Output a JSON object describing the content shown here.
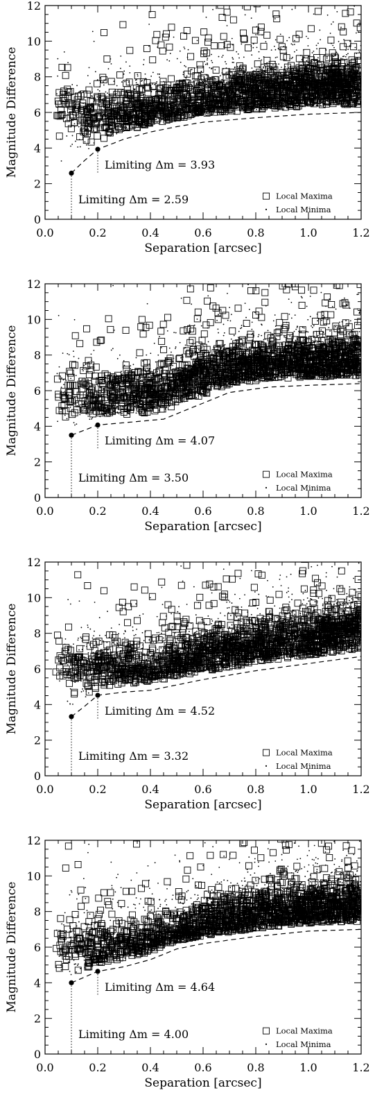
{
  "chart_data": [
    {
      "type": "scatter",
      "xlabel": "Separation  [arcsec]",
      "ylabel": "Magnitude Difference",
      "xlim": [
        0.0,
        1.2
      ],
      "ylim": [
        0,
        12
      ],
      "xticks": [
        "0.0",
        "0.2",
        "0.4",
        "0.6",
        "0.8",
        "1.0",
        "1.2"
      ],
      "yticks": [
        "0",
        "2",
        "4",
        "6",
        "8",
        "10",
        "12"
      ],
      "legend": {
        "placement": "bottom-right",
        "entries": [
          "Local Maxima",
          "Local Minima"
        ]
      },
      "series": [
        {
          "name": "Local Maxima",
          "marker": "square",
          "seed": 11,
          "count": 1700,
          "trend": [
            [
              0.05,
              6.2
            ],
            [
              0.15,
              5.8
            ],
            [
              0.3,
              6.0
            ],
            [
              0.5,
              6.5
            ],
            [
              0.7,
              7.0
            ],
            [
              0.9,
              7.3
            ],
            [
              1.1,
              7.5
            ],
            [
              1.2,
              7.5
            ]
          ],
          "spread": 0.65
        },
        {
          "name": "Local Minima",
          "marker": "dot",
          "seed": 23,
          "count": 1300,
          "trend": [
            [
              0.05,
              6.2
            ],
            [
              0.15,
              5.8
            ],
            [
              0.3,
              6.0
            ],
            [
              0.5,
              6.5
            ],
            [
              0.7,
              7.0
            ],
            [
              0.9,
              7.3
            ],
            [
              1.1,
              7.5
            ],
            [
              1.2,
              7.5
            ]
          ],
          "spread": 1.2
        }
      ],
      "limit_curve": [
        [
          0.1,
          2.59
        ],
        [
          0.15,
          3.3
        ],
        [
          0.2,
          3.93
        ],
        [
          0.3,
          4.5
        ],
        [
          0.4,
          4.9
        ],
        [
          0.5,
          5.2
        ],
        [
          0.6,
          5.45
        ],
        [
          0.8,
          5.7
        ],
        [
          1.0,
          5.9
        ],
        [
          1.2,
          6.0
        ]
      ],
      "limits": [
        {
          "x": 0.1,
          "y": 2.59,
          "label": "Limiting Δm = 2.59"
        },
        {
          "x": 0.2,
          "y": 3.93,
          "label": "Limiting Δm = 3.93"
        }
      ]
    },
    {
      "type": "scatter",
      "xlabel": "Separation  [arcsec]",
      "ylabel": "Magnitude Difference",
      "xlim": [
        0.0,
        1.2
      ],
      "ylim": [
        0,
        12
      ],
      "xticks": [
        "0.0",
        "0.2",
        "0.4",
        "0.6",
        "0.8",
        "1.0",
        "1.2"
      ],
      "yticks": [
        "0",
        "2",
        "4",
        "6",
        "8",
        "10",
        "12"
      ],
      "legend": {
        "placement": "bottom-right",
        "entries": [
          "Local Maxima",
          "Local Minima"
        ]
      },
      "series": [
        {
          "name": "Local Maxima",
          "marker": "square",
          "seed": 31,
          "count": 1700,
          "trend": [
            [
              0.05,
              5.8
            ],
            [
              0.2,
              5.7
            ],
            [
              0.4,
              5.9
            ],
            [
              0.6,
              7.0
            ],
            [
              0.8,
              7.6
            ],
            [
              1.0,
              7.7
            ],
            [
              1.2,
              7.8
            ]
          ],
          "spread": 0.7
        },
        {
          "name": "Local Minima",
          "marker": "dot",
          "seed": 37,
          "count": 1300,
          "trend": [
            [
              0.05,
              5.8
            ],
            [
              0.2,
              5.7
            ],
            [
              0.4,
              5.9
            ],
            [
              0.6,
              7.0
            ],
            [
              0.8,
              7.6
            ],
            [
              1.0,
              7.7
            ],
            [
              1.2,
              7.8
            ]
          ],
          "spread": 1.3
        }
      ],
      "limit_curve": [
        [
          0.1,
          3.5
        ],
        [
          0.2,
          4.07
        ],
        [
          0.3,
          4.2
        ],
        [
          0.45,
          4.4
        ],
        [
          0.55,
          5.0
        ],
        [
          0.7,
          5.9
        ],
        [
          0.85,
          6.2
        ],
        [
          1.0,
          6.3
        ],
        [
          1.2,
          6.4
        ]
      ],
      "limits": [
        {
          "x": 0.1,
          "y": 3.5,
          "label": "Limiting Δm = 3.50"
        },
        {
          "x": 0.2,
          "y": 4.07,
          "label": "Limiting Δm = 4.07"
        }
      ]
    },
    {
      "type": "scatter",
      "xlabel": "Separation  [arcsec]",
      "ylabel": "Magnitude Difference",
      "xlim": [
        0.0,
        1.2
      ],
      "ylim": [
        0,
        12
      ],
      "xticks": [
        "0.0",
        "0.2",
        "0.4",
        "0.6",
        "0.8",
        "1.0",
        "1.2"
      ],
      "yticks": [
        "0",
        "2",
        "4",
        "6",
        "8",
        "10",
        "12"
      ],
      "legend": {
        "placement": "bottom-right",
        "entries": [
          "Local Maxima",
          "Local Minima"
        ]
      },
      "series": [
        {
          "name": "Local Maxima",
          "marker": "square",
          "seed": 41,
          "count": 1700,
          "trend": [
            [
              0.05,
              6.3
            ],
            [
              0.2,
              6.2
            ],
            [
              0.4,
              6.1
            ],
            [
              0.6,
              6.8
            ],
            [
              0.8,
              7.3
            ],
            [
              1.0,
              7.8
            ],
            [
              1.2,
              8.3
            ]
          ],
          "spread": 0.7
        },
        {
          "name": "Local Minima",
          "marker": "dot",
          "seed": 43,
          "count": 1300,
          "trend": [
            [
              0.05,
              6.3
            ],
            [
              0.2,
              6.2
            ],
            [
              0.4,
              6.1
            ],
            [
              0.6,
              6.8
            ],
            [
              0.8,
              7.3
            ],
            [
              1.0,
              7.8
            ],
            [
              1.2,
              8.3
            ]
          ],
          "spread": 1.3
        }
      ],
      "limit_curve": [
        [
          0.1,
          3.32
        ],
        [
          0.15,
          3.9
        ],
        [
          0.2,
          4.52
        ],
        [
          0.3,
          4.7
        ],
        [
          0.4,
          4.8
        ],
        [
          0.6,
          5.4
        ],
        [
          0.8,
          5.9
        ],
        [
          1.0,
          6.3
        ],
        [
          1.2,
          6.7
        ]
      ],
      "limits": [
        {
          "x": 0.1,
          "y": 3.32,
          "label": "Limiting Δm = 3.32"
        },
        {
          "x": 0.2,
          "y": 4.52,
          "label": "Limiting Δm = 4.52"
        }
      ]
    },
    {
      "type": "scatter",
      "xlabel": "Separation  [arcsec]",
      "ylabel": "Magnitude Difference",
      "xlim": [
        0.0,
        1.2
      ],
      "ylim": [
        0,
        12
      ],
      "xticks": [
        "0.0",
        "0.2",
        "0.4",
        "0.6",
        "0.8",
        "1.0",
        "1.2"
      ],
      "yticks": [
        "0",
        "2",
        "4",
        "6",
        "8",
        "10",
        "12"
      ],
      "legend": {
        "placement": "bottom-right",
        "entries": [
          "Local Maxima",
          "Local Minima"
        ]
      },
      "series": [
        {
          "name": "Local Maxima",
          "marker": "square",
          "seed": 53,
          "count": 1700,
          "trend": [
            [
              0.05,
              6.2
            ],
            [
              0.2,
              6.0
            ],
            [
              0.4,
              6.4
            ],
            [
              0.6,
              7.3
            ],
            [
              0.8,
              7.9
            ],
            [
              1.0,
              8.2
            ],
            [
              1.2,
              8.4
            ]
          ],
          "spread": 0.7
        },
        {
          "name": "Local Minima",
          "marker": "dot",
          "seed": 59,
          "count": 1300,
          "trend": [
            [
              0.05,
              6.2
            ],
            [
              0.2,
              6.0
            ],
            [
              0.4,
              6.4
            ],
            [
              0.6,
              7.3
            ],
            [
              0.8,
              7.9
            ],
            [
              1.0,
              8.2
            ],
            [
              1.2,
              8.4
            ]
          ],
          "spread": 1.4
        }
      ],
      "limit_curve": [
        [
          0.1,
          4.0
        ],
        [
          0.2,
          4.64
        ],
        [
          0.3,
          4.9
        ],
        [
          0.4,
          5.3
        ],
        [
          0.5,
          5.9
        ],
        [
          0.6,
          6.2
        ],
        [
          0.8,
          6.6
        ],
        [
          1.0,
          6.9
        ],
        [
          1.2,
          7.0
        ]
      ],
      "limits": [
        {
          "x": 0.1,
          "y": 4.0,
          "label": "Limiting Δm = 4.00"
        },
        {
          "x": 0.2,
          "y": 4.64,
          "label": "Limiting Δm = 4.64"
        }
      ]
    }
  ]
}
